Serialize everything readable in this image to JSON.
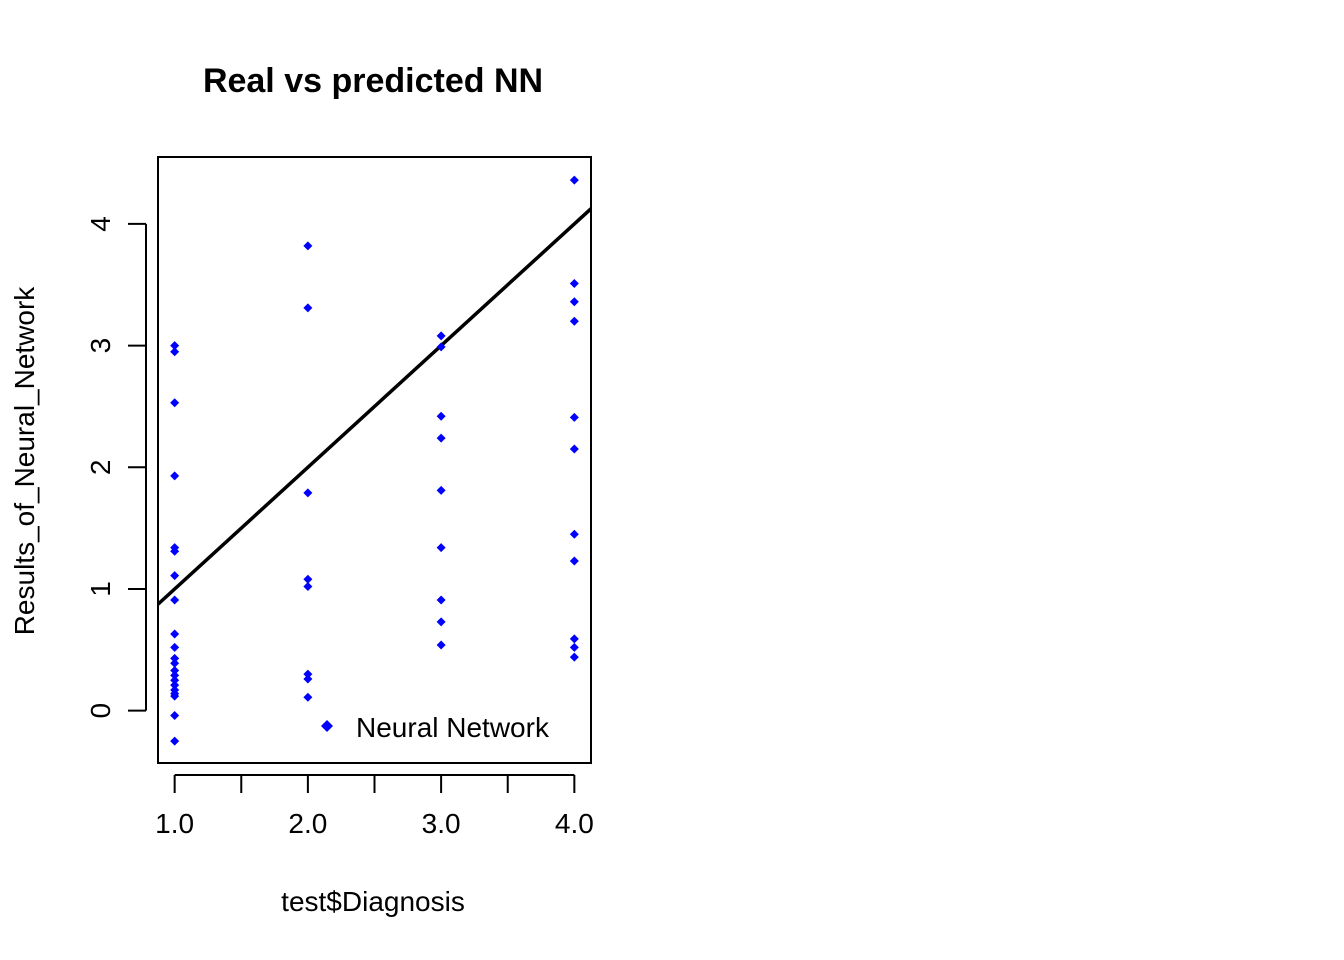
{
  "chart_data": {
    "type": "scatter",
    "title": "Real vs predicted NN",
    "xlabel": "test$Diagnosis",
    "ylabel": "Results_of_Neural_Network",
    "xlim": [
      0.875,
      4.125
    ],
    "ylim": [
      -0.43,
      4.55
    ],
    "x_ticks": [
      1.0,
      1.5,
      2.0,
      2.5,
      3.0,
      3.5,
      4.0
    ],
    "x_tick_labels": [
      {
        "value": 1.0,
        "label": "1.0"
      },
      {
        "value": 2.0,
        "label": "2.0"
      },
      {
        "value": 3.0,
        "label": "3.0"
      },
      {
        "value": 4.0,
        "label": "4.0"
      }
    ],
    "y_ticks": [
      {
        "value": 0,
        "label": "0"
      },
      {
        "value": 1,
        "label": "1"
      },
      {
        "value": 2,
        "label": "2"
      },
      {
        "value": 3,
        "label": "3"
      },
      {
        "value": 4,
        "label": "4"
      }
    ],
    "point_color": "#0000ff",
    "line_color": "#000000",
    "reference_line": {
      "intercept": 0,
      "slope": 1
    },
    "legend": {
      "label": "Neural Network",
      "position": "bottom-right"
    },
    "series": [
      {
        "name": "Neural Network",
        "points": [
          {
            "x": 1,
            "y": 3.0
          },
          {
            "x": 1,
            "y": 2.95
          },
          {
            "x": 1,
            "y": 2.53
          },
          {
            "x": 1,
            "y": 1.93
          },
          {
            "x": 1,
            "y": 1.34
          },
          {
            "x": 1,
            "y": 1.31
          },
          {
            "x": 1,
            "y": 1.11
          },
          {
            "x": 1,
            "y": 0.91
          },
          {
            "x": 1,
            "y": 0.63
          },
          {
            "x": 1,
            "y": 0.52
          },
          {
            "x": 1,
            "y": 0.43
          },
          {
            "x": 1,
            "y": 0.39
          },
          {
            "x": 1,
            "y": 0.33
          },
          {
            "x": 1,
            "y": 0.29
          },
          {
            "x": 1,
            "y": 0.25
          },
          {
            "x": 1,
            "y": 0.21
          },
          {
            "x": 1,
            "y": 0.17
          },
          {
            "x": 1,
            "y": 0.14
          },
          {
            "x": 1,
            "y": 0.12
          },
          {
            "x": 1,
            "y": -0.04
          },
          {
            "x": 1,
            "y": -0.25
          },
          {
            "x": 2,
            "y": 3.82
          },
          {
            "x": 2,
            "y": 3.31
          },
          {
            "x": 2,
            "y": 1.79
          },
          {
            "x": 2,
            "y": 1.08
          },
          {
            "x": 2,
            "y": 1.02
          },
          {
            "x": 2,
            "y": 0.3
          },
          {
            "x": 2,
            "y": 0.26
          },
          {
            "x": 2,
            "y": 0.11
          },
          {
            "x": 3,
            "y": 3.08
          },
          {
            "x": 3,
            "y": 2.99
          },
          {
            "x": 3,
            "y": 2.42
          },
          {
            "x": 3,
            "y": 2.24
          },
          {
            "x": 3,
            "y": 1.81
          },
          {
            "x": 3,
            "y": 1.34
          },
          {
            "x": 3,
            "y": 0.91
          },
          {
            "x": 3,
            "y": 0.73
          },
          {
            "x": 3,
            "y": 0.54
          },
          {
            "x": 4,
            "y": 4.36
          },
          {
            "x": 4,
            "y": 3.51
          },
          {
            "x": 4,
            "y": 3.36
          },
          {
            "x": 4,
            "y": 3.2
          },
          {
            "x": 4,
            "y": 2.41
          },
          {
            "x": 4,
            "y": 2.15
          },
          {
            "x": 4,
            "y": 1.45
          },
          {
            "x": 4,
            "y": 1.23
          },
          {
            "x": 4,
            "y": 0.59
          },
          {
            "x": 4,
            "y": 0.52
          },
          {
            "x": 4,
            "y": 0.44
          }
        ]
      }
    ]
  }
}
